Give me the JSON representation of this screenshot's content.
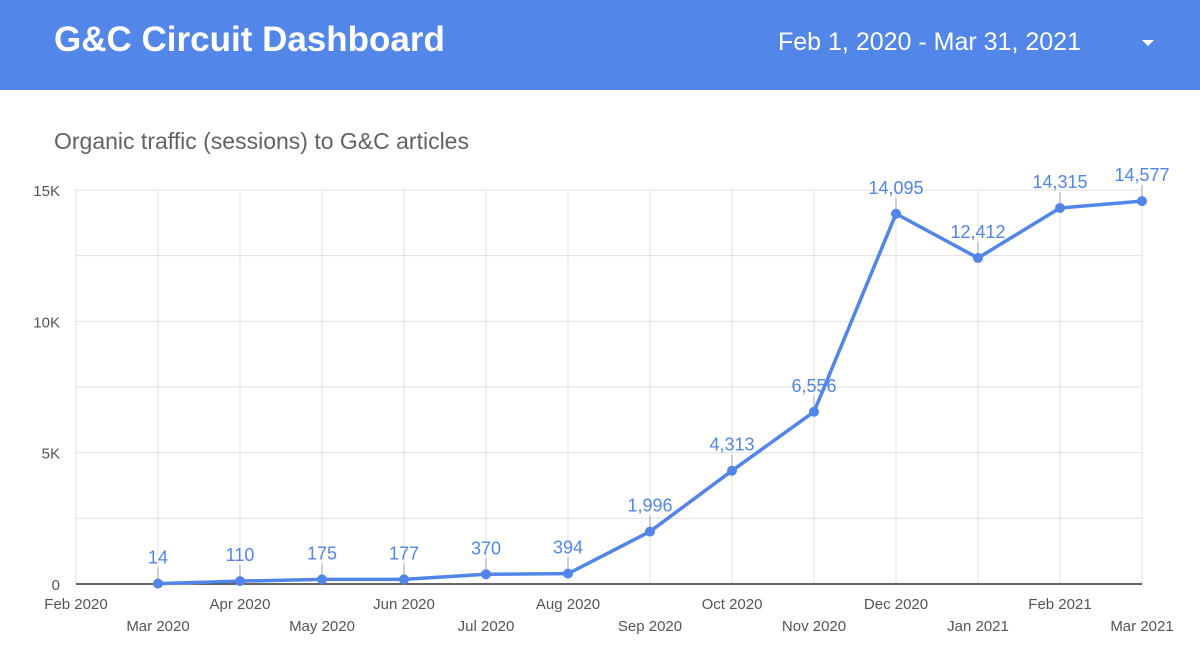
{
  "header": {
    "title": "G&C Circuit Dashboard",
    "date_range": "Feb 1, 2020 - Mar 31, 2021"
  },
  "colors": {
    "header_bg": "#5286e8",
    "series": "#5285e8",
    "grid": "#e0e0e0",
    "axis_text": "#555555"
  },
  "icons": {
    "date_dropdown": "caret-down-icon"
  },
  "chart_data": {
    "type": "line",
    "title": "Organic traffic (sessions) to G&C articles",
    "xlabel": "",
    "ylabel": "",
    "ylim": [
      0,
      15000
    ],
    "yticks": [
      {
        "value": 0,
        "label": "0"
      },
      {
        "value": 5000,
        "label": "5K"
      },
      {
        "value": 10000,
        "label": "10K"
      },
      {
        "value": 15000,
        "label": "15K"
      }
    ],
    "grid": true,
    "legend": "none",
    "categories": [
      "Feb 2020",
      "Mar 2020",
      "Apr 2020",
      "May 2020",
      "Jun 2020",
      "Jul 2020",
      "Aug 2020",
      "Sep 2020",
      "Oct 2020",
      "Nov 2020",
      "Dec 2020",
      "Jan 2021",
      "Feb 2021",
      "Mar 2021"
    ],
    "series": [
      {
        "values": [
          null,
          14,
          110,
          175,
          177,
          370,
          394,
          1996,
          4313,
          6556,
          14095,
          12412,
          14315,
          14577
        ],
        "data_labels": [
          "",
          "14",
          "110",
          "175",
          "177",
          "370",
          "394",
          "1,996",
          "4,313",
          "6,556",
          "14,095",
          "12,412",
          "14,315",
          "14,577"
        ]
      }
    ]
  }
}
